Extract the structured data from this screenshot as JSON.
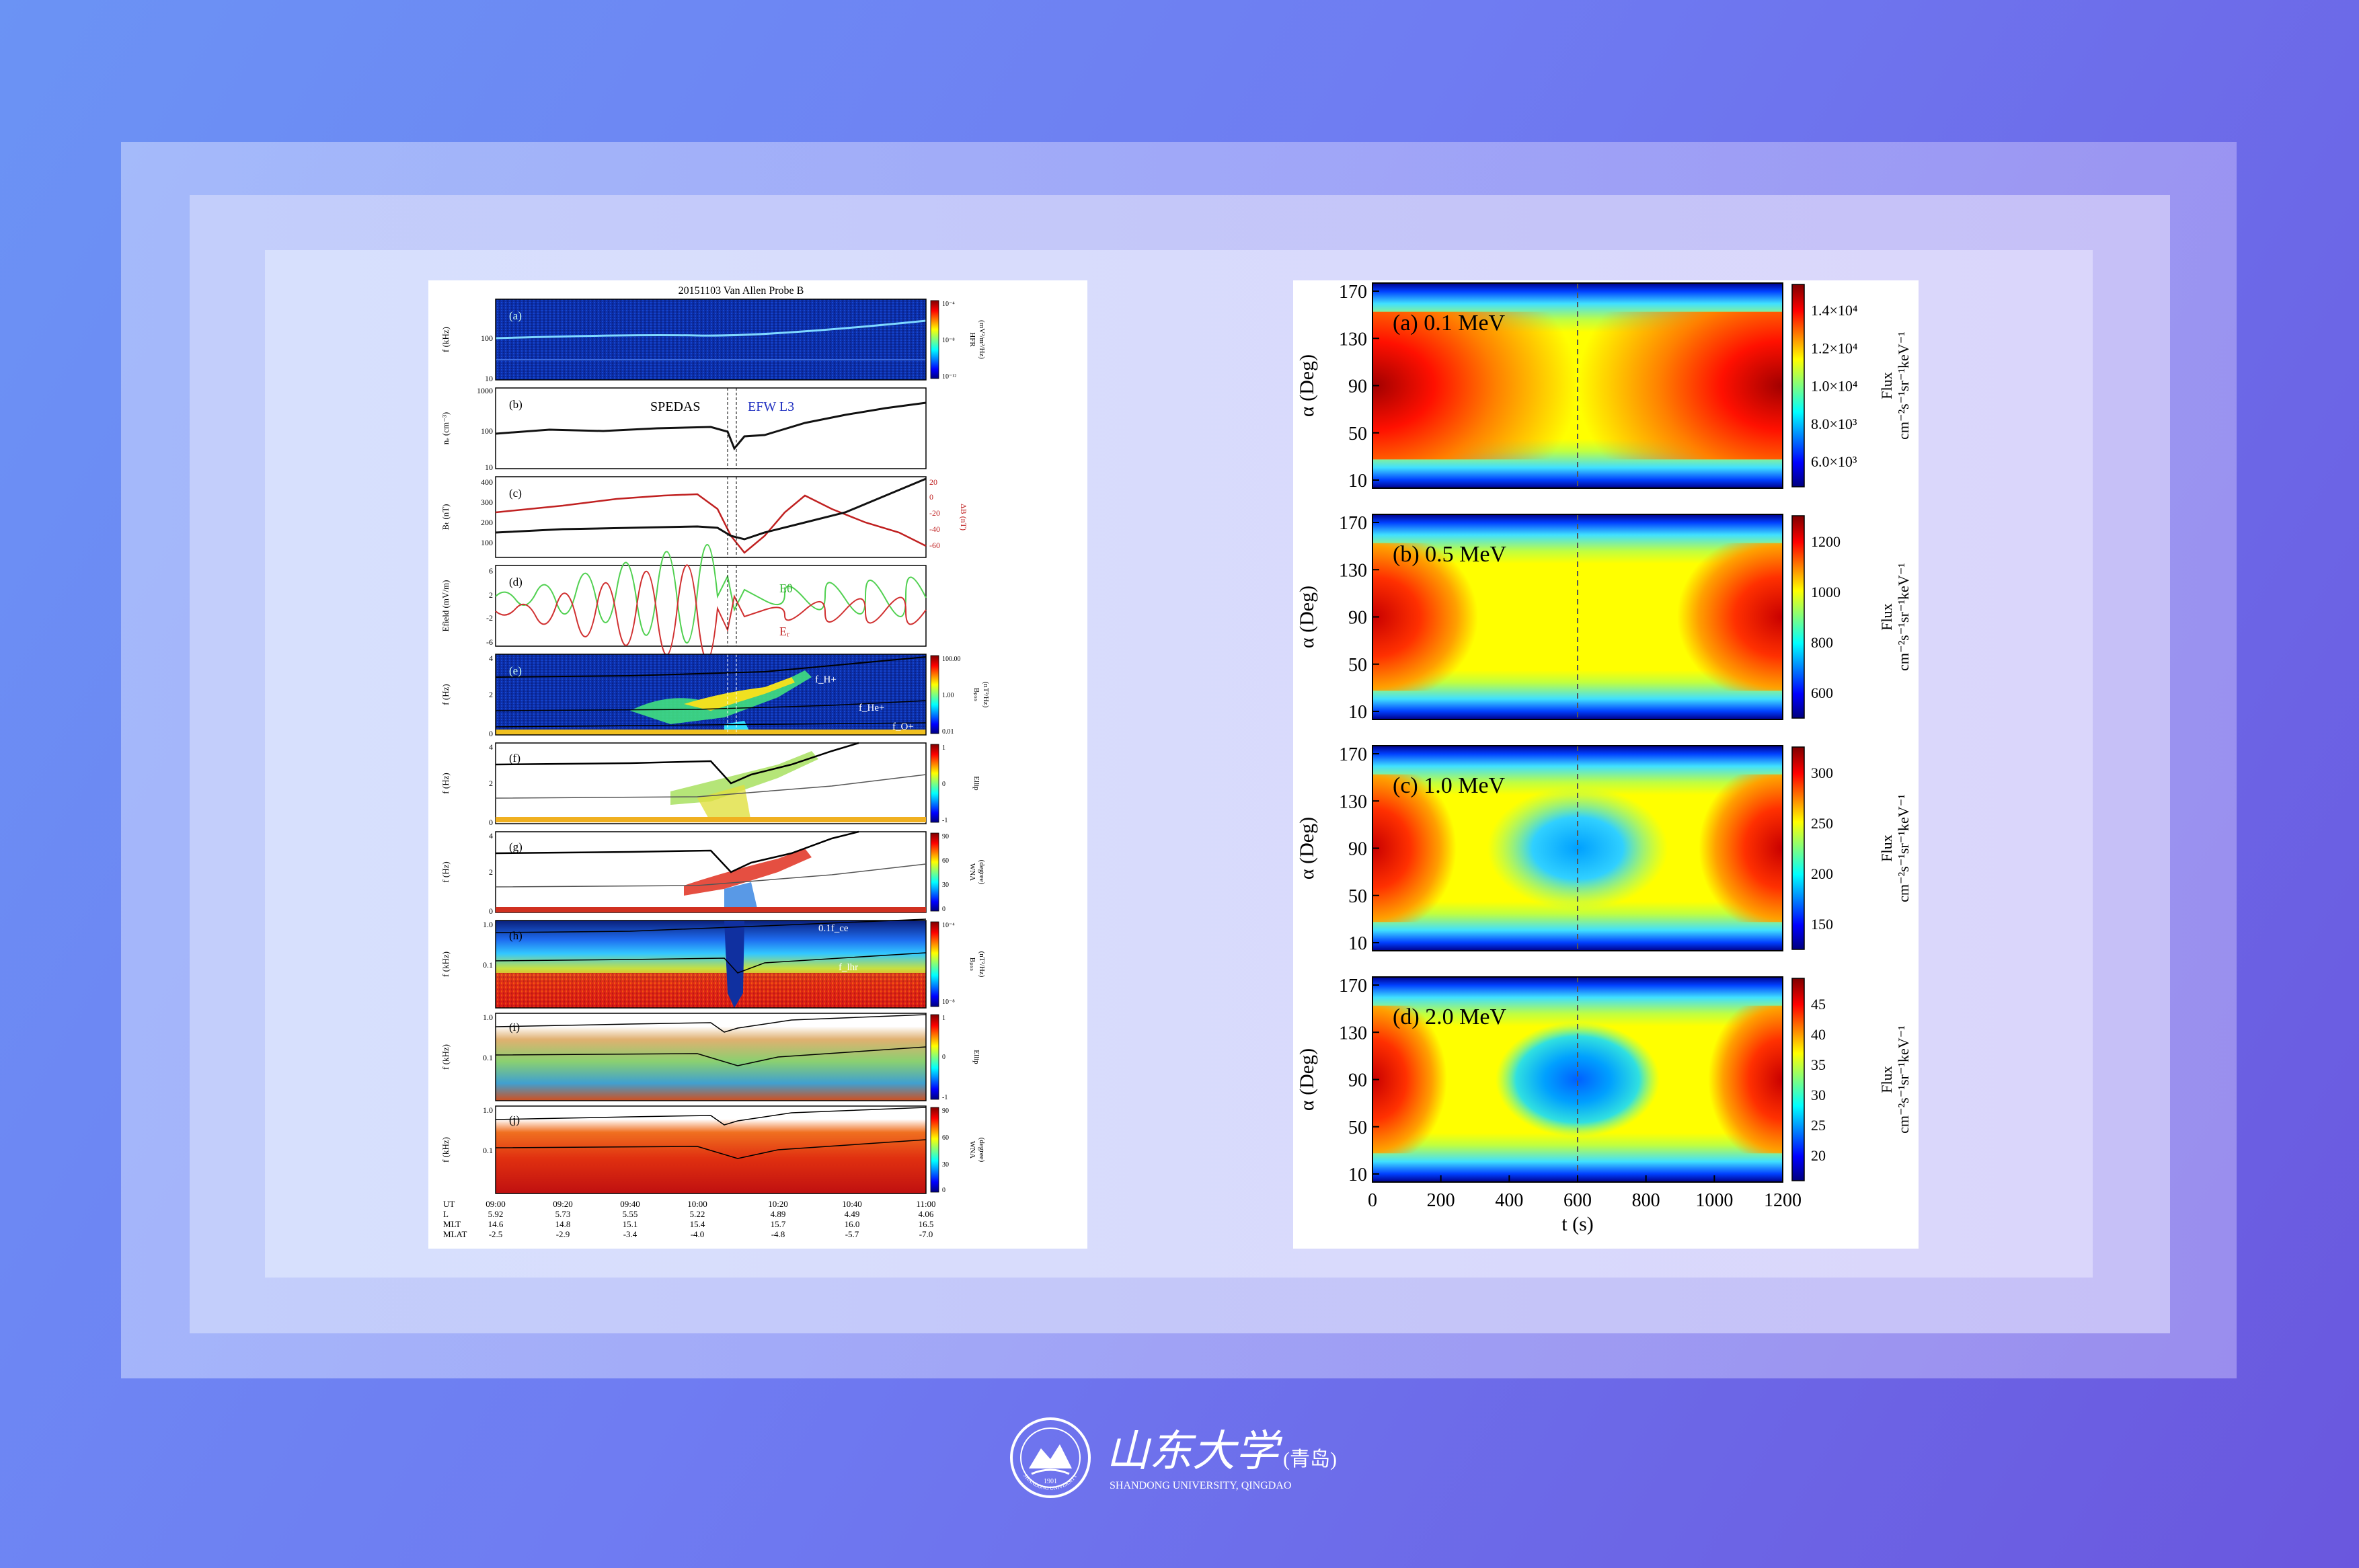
{
  "left": {
    "title": "20151103 Van Allen Probe B",
    "panels": {
      "a": {
        "label": "(a)",
        "ylabel": "f (kHz)",
        "yticks": [
          "100",
          "10"
        ],
        "cbar": "HFR",
        "cbar_unit": "(mV²/m²/Hz)",
        "cbar_ticks": [
          "10⁻⁴",
          "10⁻⁸",
          "10⁻¹²"
        ]
      },
      "b": {
        "label": "(b)",
        "ylabel": "nₑ (cm⁻³)",
        "yticks": [
          "1000",
          "100",
          "10"
        ],
        "left_text": "SPEDAS",
        "right_text": "EFW L3"
      },
      "c": {
        "label": "(c)",
        "ylabel": "Bₜ (nT)",
        "yticks": [
          "400",
          "300",
          "200",
          "100"
        ],
        "rticks": [
          "20",
          "0",
          "-20",
          "-40",
          "-60"
        ],
        "rlabel": "ΔB (nT)"
      },
      "d": {
        "label": "(d)",
        "ylabel": "Efield (mV/m)",
        "yticks": [
          "6",
          "2",
          "-2",
          "-6"
        ],
        "eth": "Eθ",
        "er": "Eᵣ"
      },
      "e": {
        "label": "(e)",
        "ylabel": "f (Hz)",
        "yticks": [
          "4",
          "2",
          "0"
        ],
        "cbar": "Bₚₛₛ",
        "cbar_unit": "(nT²/Hz)",
        "cbar_ticks": [
          "100.00",
          "1.00",
          "0.01"
        ],
        "fh": "f_H+",
        "fhe": "f_He+",
        "fo": "f_O+"
      },
      "f": {
        "label": "(f)",
        "ylabel": "f (Hz)",
        "yticks": [
          "4",
          "2",
          "0"
        ],
        "cbar": "Ellip",
        "cbar_ticks": [
          "1",
          "0",
          "-1"
        ]
      },
      "g": {
        "label": "(g)",
        "ylabel": "f (Hz)",
        "yticks": [
          "4",
          "2",
          "0"
        ],
        "cbar": "WNA",
        "cbar_unit": "(degree)",
        "cbar_ticks": [
          "90",
          "60",
          "30",
          "0"
        ]
      },
      "h": {
        "label": "(h)",
        "ylabel": "f (kHz)",
        "yticks": [
          "1.0",
          "0.1"
        ],
        "cbar": "Bₚₛₛ",
        "cbar_unit": "(nT²/Hz)",
        "cbar_ticks": [
          "10⁻⁴",
          "10⁻⁸"
        ],
        "fce": "0.1f_ce",
        "flhr": "f_lhr"
      },
      "i": {
        "label": "(i)",
        "ylabel": "f (kHz)",
        "yticks": [
          "1.0",
          "0.1"
        ],
        "cbar": "Ellip",
        "cbar_ticks": [
          "1",
          "0",
          "-1"
        ]
      },
      "j": {
        "label": "(j)",
        "ylabel": "f (kHz)",
        "yticks": [
          "1.0",
          "0.1"
        ],
        "cbar": "WNA",
        "cbar_unit": "(degree)",
        "cbar_ticks": [
          "90",
          "60",
          "30",
          "0"
        ]
      }
    },
    "footer": {
      "rows": [
        {
          "name": "UT",
          "values": [
            "09:00",
            "09:20",
            "09:40",
            "10:00",
            "10:20",
            "10:40",
            "11:00"
          ]
        },
        {
          "name": "L",
          "values": [
            "5.92",
            "5.73",
            "5.55",
            "5.22",
            "4.89",
            "4.49",
            "4.06"
          ]
        },
        {
          "name": "MLT",
          "values": [
            "14.6",
            "14.8",
            "15.1",
            "15.4",
            "15.7",
            "16.0",
            "16.5"
          ]
        },
        {
          "name": "MLAT",
          "values": [
            "-2.5",
            "-2.9",
            "-3.4",
            "-4.0",
            "-4.8",
            "-5.7",
            "-7.0"
          ]
        }
      ]
    }
  },
  "right": {
    "ylabel": "α (Deg)",
    "xlabel": "t (s)",
    "cbar_label_top": "Flux",
    "cbar_label_unit": "cm⁻²s⁻¹sr⁻¹keV⁻¹",
    "yticks": [
      "170",
      "130",
      "90",
      "50",
      "10"
    ],
    "xticks": [
      "0",
      "200",
      "400",
      "600",
      "800",
      "1000",
      "1200"
    ],
    "panels": [
      {
        "label": "(a) 0.1 MeV",
        "cbar_ticks": [
          "1.4×10⁴",
          "1.2×10⁴",
          "1.0×10⁴",
          "8.0×10³",
          "6.0×10³"
        ]
      },
      {
        "label": "(b) 0.5 MeV",
        "cbar_ticks": [
          "1200",
          "1000",
          "800",
          "600"
        ]
      },
      {
        "label": "(c) 1.0 MeV",
        "cbar_ticks": [
          "300",
          "250",
          "200",
          "150"
        ]
      },
      {
        "label": "(d) 2.0 MeV",
        "cbar_ticks": [
          "45",
          "40",
          "35",
          "30",
          "25",
          "20"
        ]
      }
    ]
  },
  "logo": {
    "cn_name": "山东大学",
    "cn_campus": "(青岛)",
    "en_name": "SHANDONG UNIVERSITY, QINGDAO",
    "seal_year": "1901",
    "seal_text": "SHANDONG UNIVERSITY"
  }
}
